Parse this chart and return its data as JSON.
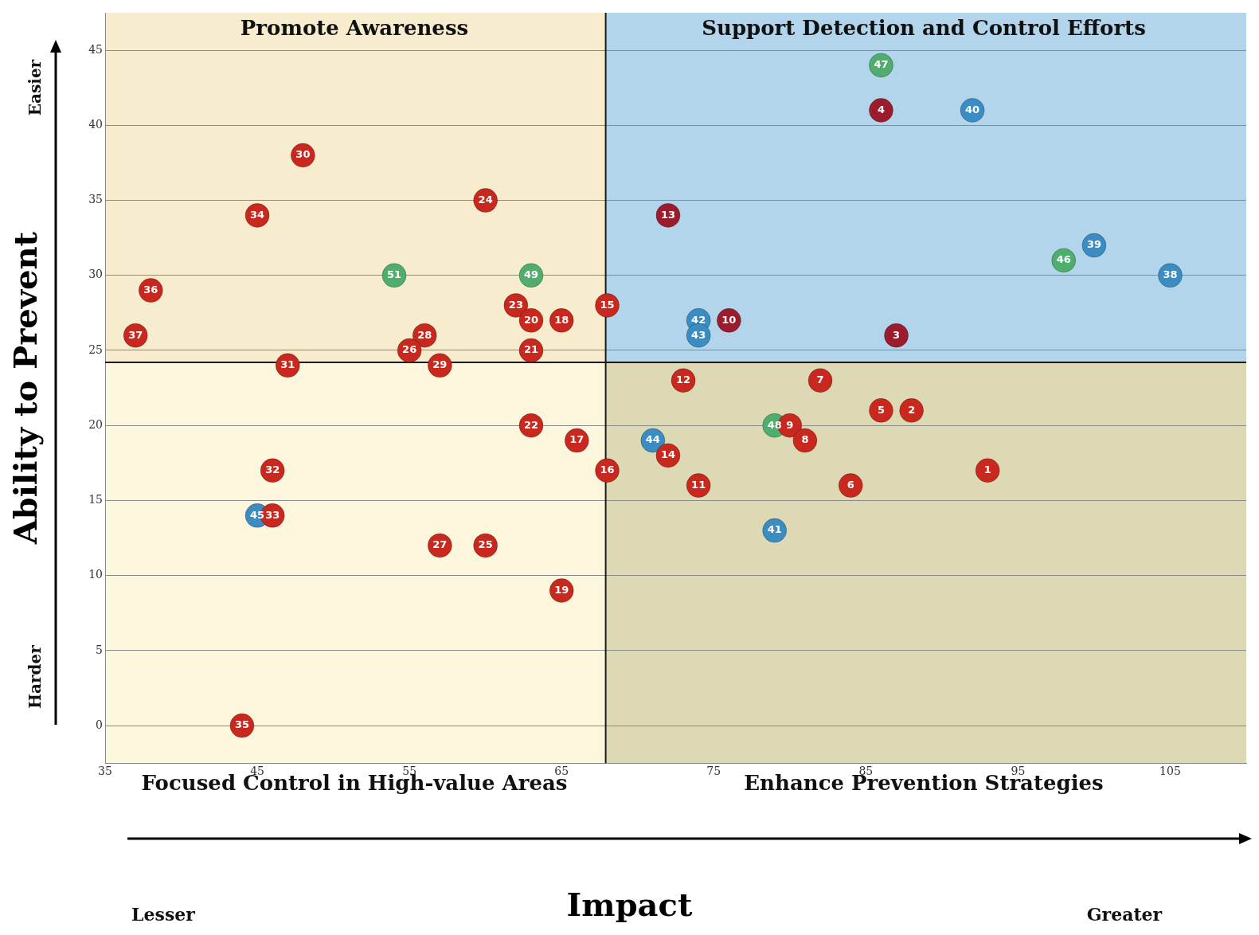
{
  "chart_data": {
    "type": "scatter",
    "xlabel": "Impact",
    "ylabel": "Ability to Prevent",
    "xlim": [
      35,
      110
    ],
    "xticks": [
      35,
      45,
      55,
      65,
      75,
      85,
      95,
      105
    ],
    "ylim": [
      -2.5,
      47.5
    ],
    "yticks": [
      0,
      5,
      10,
      15,
      20,
      25,
      30,
      35,
      40,
      45
    ],
    "grid": "y",
    "legend": false,
    "marker": "circle",
    "ref_lines": [
      {
        "axis": "x",
        "value": 67.9,
        "color": "#1a1a1a"
      },
      {
        "axis": "y",
        "value": 24.2,
        "color": "#1a1a1a"
      }
    ],
    "annotations": [
      "Promote Awareness",
      "Support Detection and Control Efforts",
      "Focused Control in High-value Areas",
      "Enhance Prevention Strategies",
      "Easier",
      "Harder",
      "Lesser",
      "Greater",
      {
        "text": "30",
        "x": 48,
        "y": 38
      },
      {
        "text": "34",
        "x": 45,
        "y": 34
      },
      {
        "text": "24",
        "x": 60,
        "y": 35
      },
      {
        "text": "36",
        "x": 38,
        "y": 29
      },
      {
        "text": "37",
        "x": 37,
        "y": 26
      },
      {
        "text": "31",
        "x": 47,
        "y": 24
      },
      {
        "text": "28",
        "x": 56,
        "y": 26
      },
      {
        "text": "26",
        "x": 55,
        "y": 25
      },
      {
        "text": "29",
        "x": 57,
        "y": 24
      },
      {
        "text": "23",
        "x": 62,
        "y": 28
      },
      {
        "text": "20",
        "x": 63,
        "y": 27
      },
      {
        "text": "18",
        "x": 65,
        "y": 27
      },
      {
        "text": "21",
        "x": 63,
        "y": 25
      },
      {
        "text": "15",
        "x": 68,
        "y": 28
      },
      {
        "text": "22",
        "x": 63,
        "y": 20
      },
      {
        "text": "17",
        "x": 66,
        "y": 19
      },
      {
        "text": "16",
        "x": 68,
        "y": 17
      },
      {
        "text": "32",
        "x": 46,
        "y": 17
      },
      {
        "text": "33",
        "x": 46,
        "y": 14
      },
      {
        "text": "27",
        "x": 57,
        "y": 12
      },
      {
        "text": "25",
        "x": 60,
        "y": 12
      },
      {
        "text": "19",
        "x": 65,
        "y": 9
      },
      {
        "text": "35",
        "x": 44,
        "y": 0
      },
      {
        "text": "12",
        "x": 73,
        "y": 23
      },
      {
        "text": "7",
        "x": 82,
        "y": 23
      },
      {
        "text": "5",
        "x": 86,
        "y": 21
      },
      {
        "text": "2",
        "x": 88,
        "y": 21
      },
      {
        "text": "9",
        "x": 80,
        "y": 20
      },
      {
        "text": "8",
        "x": 81,
        "y": 19
      },
      {
        "text": "14",
        "x": 72,
        "y": 18
      },
      {
        "text": "11",
        "x": 74,
        "y": 16
      },
      {
        "text": "6",
        "x": 84,
        "y": 16
      },
      {
        "text": "1",
        "x": 93,
        "y": 17
      },
      {
        "text": "4",
        "x": 86,
        "y": 41
      },
      {
        "text": "13",
        "x": 72,
        "y": 34
      },
      {
        "text": "10",
        "x": 76,
        "y": 27
      },
      {
        "text": "3",
        "x": 87,
        "y": 26
      },
      {
        "text": "40",
        "x": 92,
        "y": 41
      },
      {
        "text": "39",
        "x": 100,
        "y": 32
      },
      {
        "text": "38",
        "x": 105,
        "y": 30
      },
      {
        "text": "42",
        "x": 74,
        "y": 27
      },
      {
        "text": "43",
        "x": 74,
        "y": 26
      },
      {
        "text": "45",
        "x": 45,
        "y": 14
      },
      {
        "text": "44",
        "x": 71,
        "y": 19
      },
      {
        "text": "41",
        "x": 79,
        "y": 13
      },
      {
        "text": "47",
        "x": 86,
        "y": 44
      },
      {
        "text": "46",
        "x": 98,
        "y": 31
      },
      {
        "text": "48",
        "x": 79,
        "y": 20
      },
      {
        "text": "51",
        "x": 54,
        "y": 30
      },
      {
        "text": "49",
        "x": 63,
        "y": 30
      }
    ],
    "series": [
      {
        "color": "#c8281e",
        "x": [
          48,
          45,
          60,
          38,
          37,
          47,
          56,
          55,
          57,
          62,
          63,
          65,
          63,
          68,
          63,
          66,
          68,
          46,
          46,
          57,
          60,
          65,
          44,
          73,
          82,
          86,
          88,
          80,
          81,
          72,
          74,
          84,
          93
        ],
        "values": [
          38,
          34,
          35,
          29,
          26,
          24,
          26,
          25,
          24,
          28,
          27,
          27,
          25,
          28,
          20,
          19,
          17,
          17,
          14,
          12,
          12,
          9,
          0,
          23,
          23,
          21,
          21,
          20,
          19,
          18,
          16,
          16,
          17
        ]
      },
      {
        "color": "#9b1c2c",
        "x": [
          86,
          72,
          76,
          87
        ],
        "values": [
          41,
          34,
          27,
          26
        ]
      },
      {
        "color": "#3b8cc2",
        "x": [
          92,
          100,
          105,
          74,
          74,
          45,
          71,
          79
        ],
        "values": [
          41,
          32,
          30,
          27,
          26,
          14,
          19,
          13
        ]
      },
      {
        "color": "#4fae6e",
        "x": [
          86,
          98,
          79,
          54,
          63
        ],
        "values": [
          44,
          31,
          20,
          30,
          30
        ]
      }
    ]
  }
}
